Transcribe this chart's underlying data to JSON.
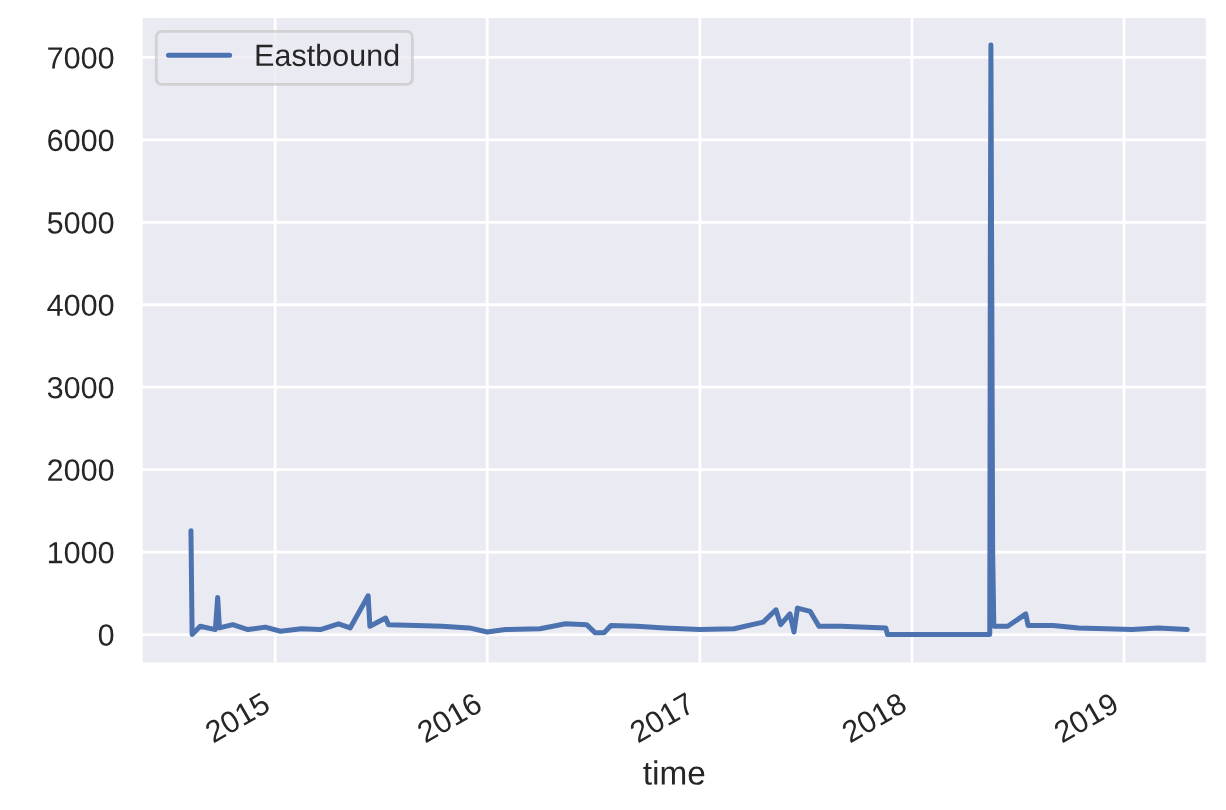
{
  "chart_data": {
    "type": "line",
    "xlabel": "time",
    "x": [
      "2014-08-09",
      "2014-08-11",
      "2014-08-25",
      "2014-09-20",
      "2014-09-24",
      "2014-09-27",
      "2014-10-20",
      "2014-11-15",
      "2014-12-15",
      "2015-01-10",
      "2015-02-15",
      "2015-03-20",
      "2015-04-20",
      "2015-05-10",
      "2015-06-10",
      "2015-06-13",
      "2015-07-10",
      "2015-07-15",
      "2015-09-01",
      "2015-10-15",
      "2015-12-01",
      "2016-01-01",
      "2016-02-01",
      "2016-04-01",
      "2016-05-15",
      "2016-06-20",
      "2016-07-05",
      "2016-07-20",
      "2016-08-01",
      "2016-09-15",
      "2016-11-01",
      "2017-01-01",
      "2017-03-01",
      "2017-04-20",
      "2017-05-12",
      "2017-05-20",
      "2017-06-05",
      "2017-06-12",
      "2017-06-18",
      "2017-07-10",
      "2017-07-25",
      "2017-09-01",
      "2017-11-17",
      "2017-11-20",
      "2018-05-15",
      "2018-05-16",
      "2018-05-17",
      "2018-05-18",
      "2018-05-20",
      "2018-05-22",
      "2018-06-15",
      "2018-07-16",
      "2018-07-20",
      "2018-09-01",
      "2018-10-15",
      "2018-12-01",
      "2019-01-15",
      "2019-03-01",
      "2019-04-20"
    ],
    "series": [
      {
        "name": "Eastbound",
        "color": "#4c72b0",
        "values": [
          1260,
          0,
          100,
          60,
          450,
          80,
          120,
          60,
          90,
          40,
          70,
          60,
          130,
          80,
          470,
          100,
          200,
          120,
          110,
          100,
          80,
          30,
          60,
          70,
          130,
          120,
          20,
          20,
          110,
          100,
          80,
          60,
          70,
          150,
          300,
          120,
          250,
          30,
          320,
          280,
          100,
          100,
          80,
          0,
          0,
          4600,
          7150,
          5100,
          1000,
          100,
          100,
          250,
          110,
          110,
          80,
          70,
          60,
          80,
          60
        ]
      }
    ],
    "xlim": [
      "2014-05-15",
      "2019-05-25"
    ],
    "xticks": [
      "2015",
      "2016",
      "2017",
      "2018",
      "2019"
    ],
    "ylim": [
      -360,
      7500
    ],
    "yticks": [
      0,
      1000,
      2000,
      3000,
      4000,
      5000,
      6000,
      7000
    ],
    "grid": true,
    "legend": "top left",
    "line_style": "solid",
    "marker": "none"
  }
}
